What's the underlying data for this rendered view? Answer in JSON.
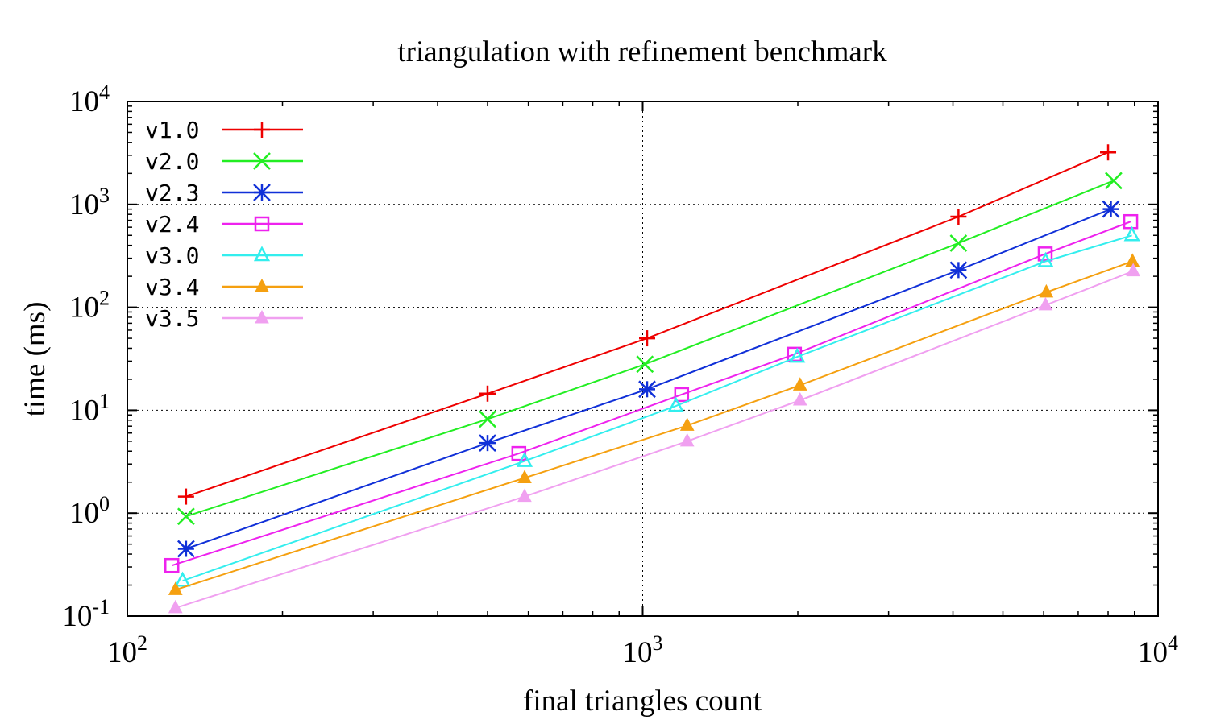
{
  "chart_data": {
    "type": "line",
    "title": "triangulation with refinement benchmark",
    "xlabel": "final triangles count",
    "ylabel": "time (ms)",
    "xscale": "log",
    "yscale": "log",
    "xlim": [
      100,
      10000
    ],
    "ylim": [
      0.1,
      10000
    ],
    "grid": true,
    "legend_position": "top-left",
    "x_ticks": [
      {
        "value": 100,
        "base": "10",
        "exp": "2"
      },
      {
        "value": 1000,
        "base": "10",
        "exp": "3"
      },
      {
        "value": 10000,
        "base": "10",
        "exp": "4"
      }
    ],
    "y_ticks": [
      {
        "value": 0.1,
        "base": "10",
        "exp": "-1"
      },
      {
        "value": 1,
        "base": "10",
        "exp": "0"
      },
      {
        "value": 10,
        "base": "10",
        "exp": "1"
      },
      {
        "value": 100,
        "base": "10",
        "exp": "2"
      },
      {
        "value": 1000,
        "base": "10",
        "exp": "3"
      },
      {
        "value": 10000,
        "base": "10",
        "exp": "4"
      }
    ],
    "series": [
      {
        "name": "v1.0",
        "color": "#ee0000",
        "marker": "plus",
        "x": [
          130,
          500,
          1020,
          4100,
          8000
        ],
        "y": [
          1.45,
          14.5,
          50,
          760,
          3200
        ]
      },
      {
        "name": "v2.0",
        "color": "#22ee22",
        "marker": "cross",
        "x": [
          130,
          500,
          1010,
          4100,
          8200
        ],
        "y": [
          0.93,
          8.2,
          28,
          420,
          1700
        ]
      },
      {
        "name": "v2.3",
        "color": "#1030d8",
        "marker": "asterisk",
        "x": [
          130,
          500,
          1020,
          4100,
          8100
        ],
        "y": [
          0.45,
          4.8,
          16,
          230,
          900
        ]
      },
      {
        "name": "v2.4",
        "color": "#ee22ee",
        "marker": "square",
        "x": [
          122,
          575,
          1190,
          1970,
          6040,
          8850
        ],
        "y": [
          0.31,
          3.8,
          14.2,
          35,
          330,
          680
        ]
      },
      {
        "name": "v3.0",
        "color": "#33eeee",
        "marker": "triangle-open",
        "x": [
          128,
          590,
          1160,
          1995,
          6050,
          8900
        ],
        "y": [
          0.22,
          3.2,
          11,
          33,
          280,
          500
        ]
      },
      {
        "name": "v3.4",
        "color": "#f5a010",
        "marker": "triangle-filled",
        "x": [
          124,
          590,
          1220,
          2020,
          6070,
          8920
        ],
        "y": [
          0.18,
          2.2,
          7.1,
          17.5,
          140,
          280
        ]
      },
      {
        "name": "v3.5",
        "color": "#f0a0f0",
        "marker": "triangle-filled",
        "x": [
          124,
          590,
          1220,
          2020,
          6050,
          8950
        ],
        "y": [
          0.12,
          1.45,
          5,
          12.5,
          105,
          225
        ]
      }
    ]
  }
}
